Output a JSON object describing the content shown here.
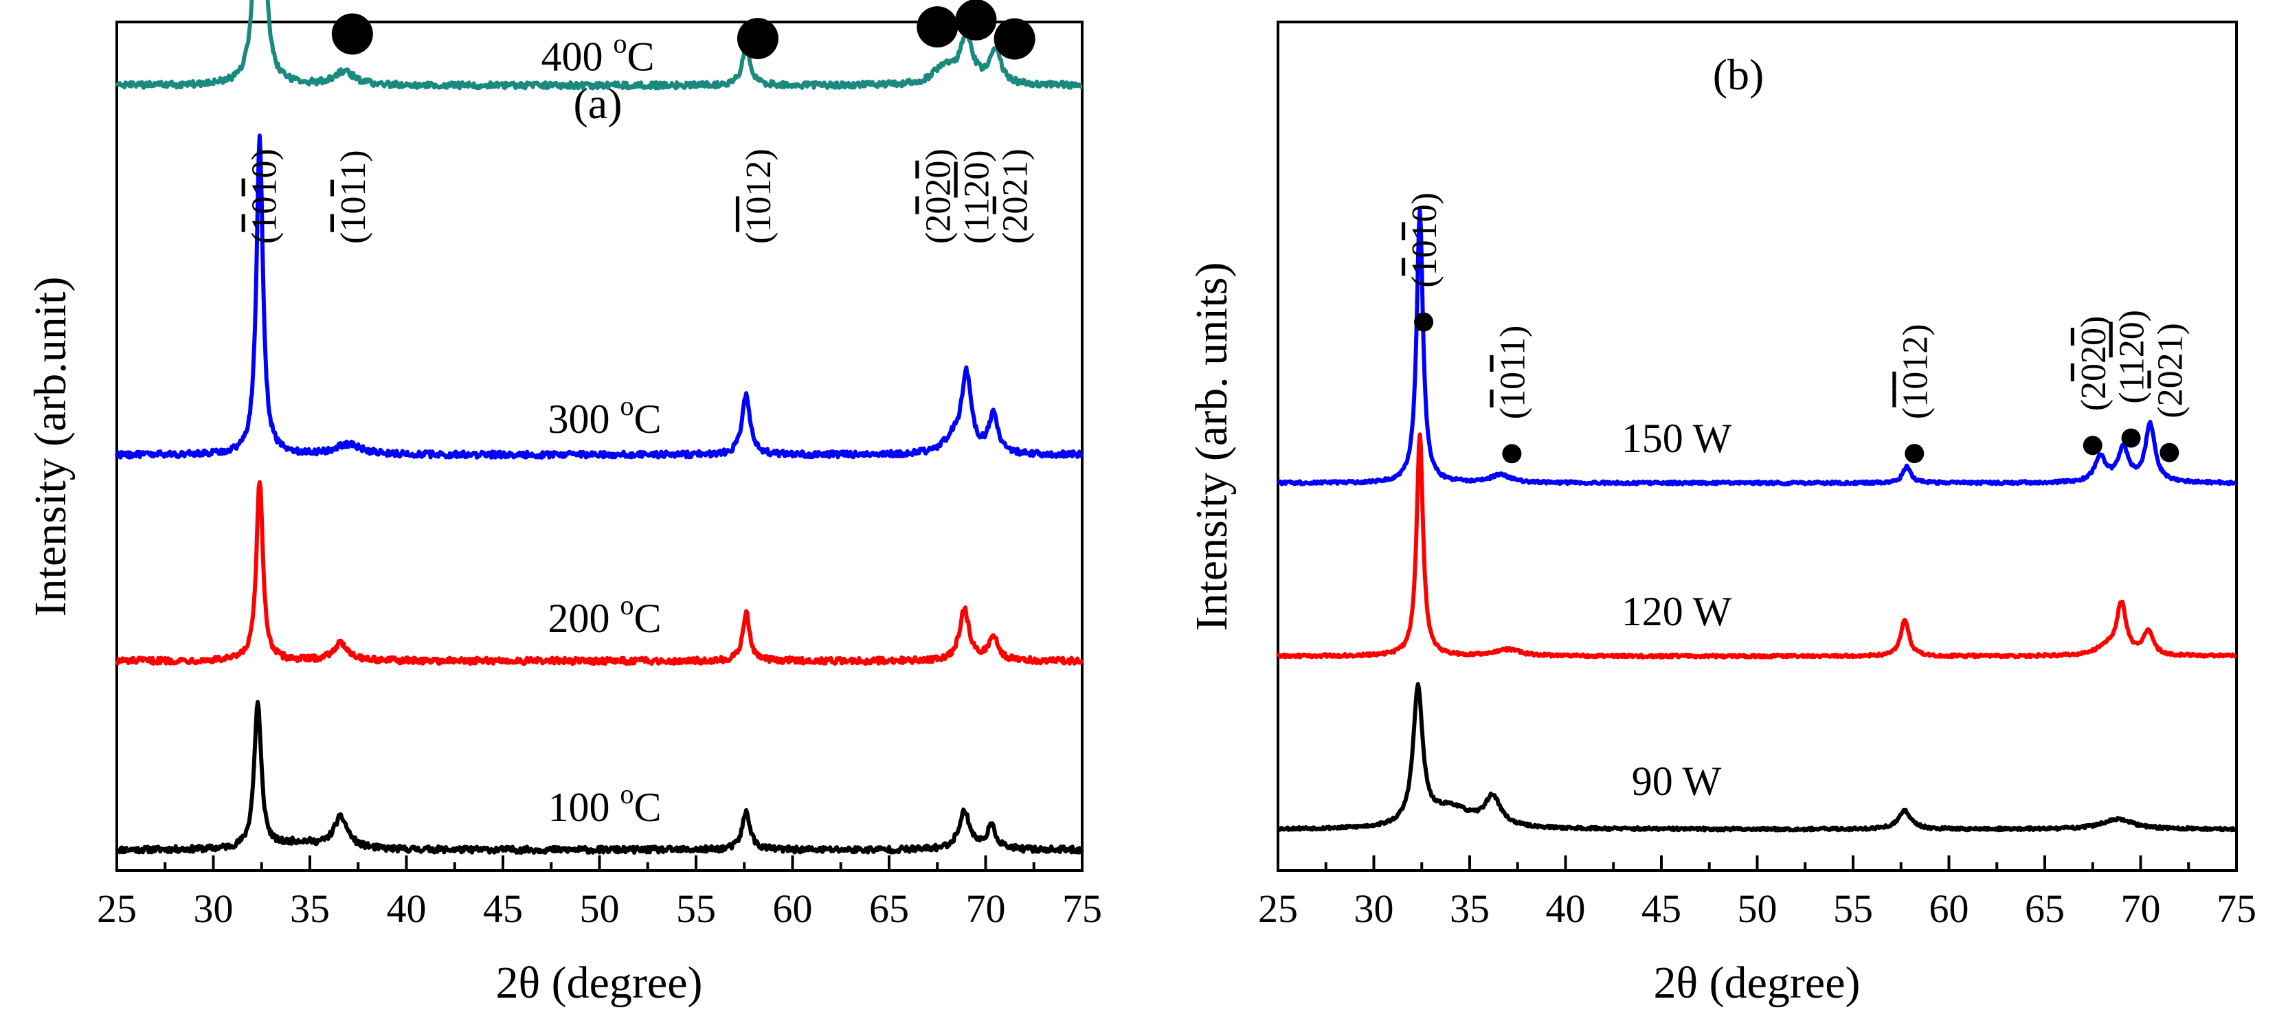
{
  "figure": {
    "xlabel_text": "2θ (degree)",
    "panels": [
      {
        "id": "a",
        "panel_label": "(a)",
        "ylabel": "Intensity (arb.unit)"
      },
      {
        "id": "b",
        "panel_label": "(b)",
        "ylabel": "Intensity (arb. units)"
      }
    ]
  },
  "chart_data": [
    {
      "type": "line",
      "panel": "(a)",
      "xlabel": "2θ (degree)",
      "ylabel": "Intensity (arb.unit)",
      "xlim": [
        25,
        75
      ],
      "xticks": [
        25,
        30,
        35,
        40,
        45,
        50,
        55,
        60,
        65,
        70,
        75
      ],
      "yticks_shown": false,
      "grid": false,
      "series": [
        {
          "name": "100 °C",
          "label_main": "100 ",
          "label_sup": "o",
          "label_unit": "C",
          "color": "#000000",
          "baseline": 0.0,
          "peaks": [
            [
              32.3,
              0.85,
              0.22
            ],
            [
              34.5,
              0.04,
              1.2
            ],
            [
              36.6,
              0.18,
              0.45
            ],
            [
              57.6,
              0.22,
              0.25
            ],
            [
              68.9,
              0.22,
              0.35
            ],
            [
              70.3,
              0.13,
              0.3
            ]
          ]
        },
        {
          "name": "200 °C",
          "label_main": "200 ",
          "label_sup": "o",
          "label_unit": "C",
          "color": "#ff0000",
          "baseline": 1.1,
          "peaks": [
            [
              32.4,
              1.05,
              0.2
            ],
            [
              36.6,
              0.1,
              0.5
            ],
            [
              57.6,
              0.28,
              0.22
            ],
            [
              68.9,
              0.3,
              0.3
            ],
            [
              70.4,
              0.14,
              0.3
            ]
          ]
        },
        {
          "name": "300 °C",
          "label_main": "300 ",
          "label_sup": "o",
          "label_unit": "C",
          "color": "#0000ff",
          "baseline": 2.3,
          "peaks": [
            [
              32.4,
              1.85,
              0.2
            ],
            [
              37.0,
              0.06,
              0.8
            ],
            [
              57.6,
              0.35,
              0.25
            ],
            [
              68.3,
              0.08,
              0.6
            ],
            [
              69.0,
              0.45,
              0.3
            ],
            [
              70.4,
              0.22,
              0.3
            ]
          ]
        },
        {
          "name": "400 °C",
          "label_main": "400 ",
          "label_sup": "o",
          "label_unit": "C",
          "color": "#1a8a80",
          "baseline": 4.45,
          "peaks": [
            [
              32.4,
              2.6,
              0.2
            ],
            [
              36.8,
              0.08,
              0.6
            ],
            [
              57.6,
              0.22,
              0.25
            ],
            [
              67.8,
              0.1,
              0.6
            ],
            [
              69.0,
              0.28,
              0.4
            ],
            [
              70.5,
              0.2,
              0.35
            ]
          ]
        }
      ],
      "annotations": [
        {
          "text": "(1010)",
          "x": 32.6,
          "bar_chars": [
            1,
            3
          ]
        },
        {
          "text": "(1011)",
          "x": 37.2,
          "bar_chars": [
            1,
            3
          ]
        },
        {
          "text": "(1012)",
          "x": 58.2,
          "bar_chars": [
            1,
            2
          ]
        },
        {
          "text": "(2020)",
          "x": 67.5,
          "bar_chars": [
            2,
            4
          ]
        },
        {
          "text": "(1120)",
          "x": 69.5,
          "bar_chars": [
            3,
            4
          ]
        },
        {
          "text": "(2021)",
          "x": 71.5,
          "bar_chars": [
            2
          ]
        }
      ]
    },
    {
      "type": "line",
      "panel": "(b)",
      "xlabel": "2θ (degree)",
      "ylabel": "Intensity (arb. units)",
      "xlim": [
        25,
        75
      ],
      "xticks": [
        25,
        30,
        35,
        40,
        45,
        50,
        55,
        60,
        65,
        70,
        75
      ],
      "yticks_shown": false,
      "grid": false,
      "series": [
        {
          "name": "90 W",
          "label_main": "90 W",
          "color": "#000000",
          "baseline": 0.0,
          "peaks": [
            [
              32.3,
              1.65,
              0.3
            ],
            [
              34.0,
              0.25,
              1.3
            ],
            [
              36.2,
              0.35,
              0.5
            ],
            [
              57.7,
              0.22,
              0.4
            ],
            [
              68.8,
              0.12,
              1.0
            ]
          ]
        },
        {
          "name": "120 W",
          "label_main": "120 W",
          "color": "#ff0000",
          "baseline": 2.1,
          "peaks": [
            [
              32.4,
              2.7,
              0.2
            ],
            [
              37.0,
              0.08,
              0.8
            ],
            [
              57.7,
              0.45,
              0.25
            ],
            [
              68.2,
              0.1,
              0.6
            ],
            [
              69.0,
              0.62,
              0.3
            ],
            [
              70.4,
              0.3,
              0.3
            ]
          ]
        },
        {
          "name": "150 W",
          "label_main": "150 W",
          "color": "#0000ff",
          "baseline": 4.2,
          "peaks": [
            [
              32.4,
              3.3,
              0.2
            ],
            [
              36.6,
              0.1,
              0.6
            ],
            [
              57.8,
              0.2,
              0.25
            ],
            [
              67.9,
              0.3,
              0.35
            ],
            [
              69.1,
              0.4,
              0.35
            ],
            [
              70.5,
              0.7,
              0.3
            ]
          ]
        }
      ],
      "annotations": [
        {
          "text": "(1010)",
          "x": 32.6,
          "bar_chars": [
            1,
            3
          ]
        },
        {
          "text": "(1011)",
          "x": 37.2,
          "bar_chars": [
            1,
            3
          ]
        },
        {
          "text": "(1012)",
          "x": 58.2,
          "bar_chars": [
            1,
            2
          ]
        },
        {
          "text": "(2020)",
          "x": 67.5,
          "bar_chars": [
            2,
            4
          ]
        },
        {
          "text": "(1120)",
          "x": 69.5,
          "bar_chars": [
            3,
            4
          ]
        },
        {
          "text": "(2021)",
          "x": 71.5,
          "bar_chars": [
            2
          ]
        }
      ]
    }
  ]
}
